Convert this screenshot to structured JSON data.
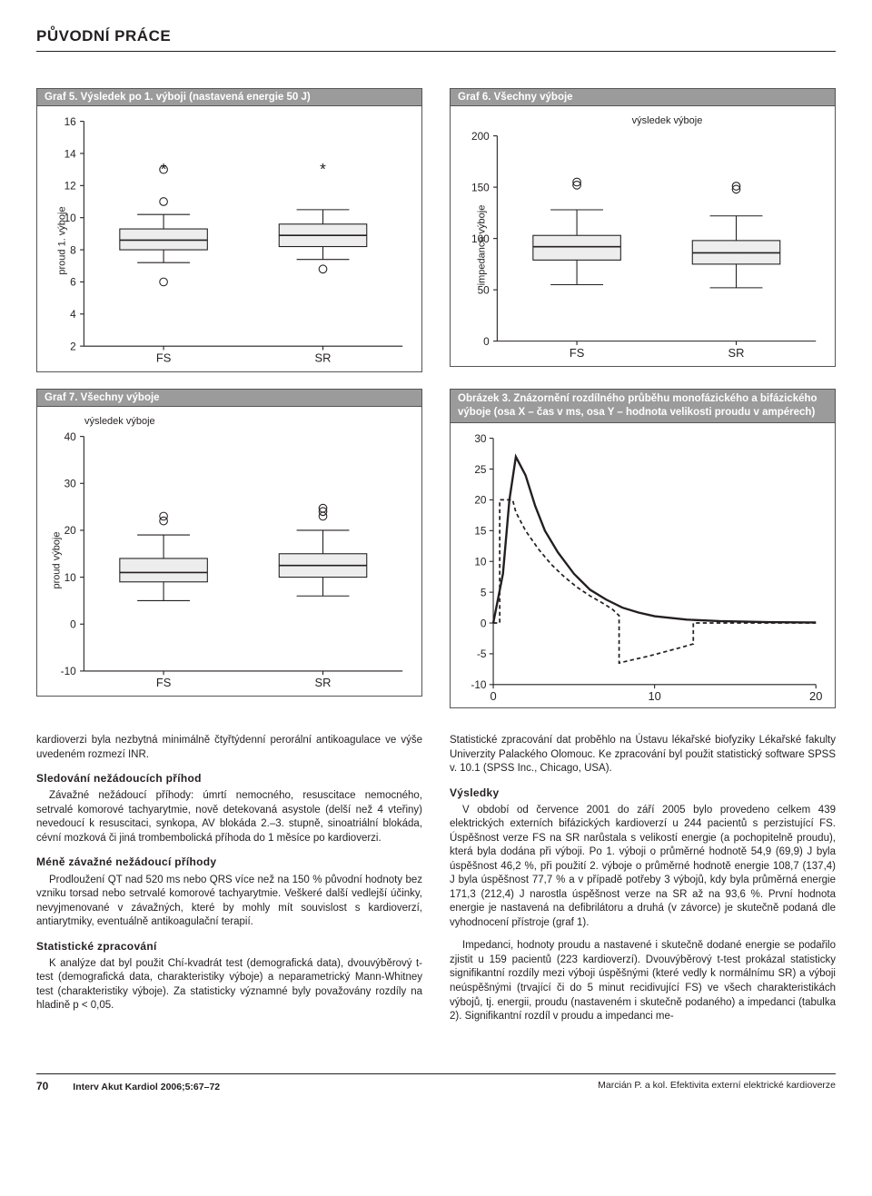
{
  "header": {
    "section": "PŮVODNÍ PRÁCE"
  },
  "chart5": {
    "type": "boxplot",
    "title": "Graf 5. Výsledek po 1. výboji (nastavená energie 50 J)",
    "ylabel": "proud 1. výboje",
    "ymin": 2,
    "ymax": 16,
    "yticks": [
      2,
      4,
      6,
      8,
      10,
      12,
      14,
      16
    ],
    "categories": [
      "FS",
      "SR"
    ],
    "boxes": [
      {
        "q1": 8.0,
        "median": 8.6,
        "q3": 9.3,
        "whisker_low": 7.2,
        "whisker_high": 10.2,
        "outliers": [
          11.0,
          6.0,
          13.0
        ],
        "stars": [
          13.0
        ]
      },
      {
        "q1": 8.2,
        "median": 8.9,
        "q3": 9.6,
        "whisker_low": 7.4,
        "whisker_high": 10.5,
        "outliers": [
          6.8
        ],
        "stars": [
          13.0
        ]
      }
    ],
    "box_fill": "#ededed",
    "box_stroke": "#231f20"
  },
  "chart6": {
    "type": "boxplot",
    "title": "Graf 6. Všechny výboje",
    "subtitle": "výsledek výboje",
    "ylabel": "impedance výboje",
    "ymin": 0,
    "ymax": 200,
    "yticks": [
      0,
      50,
      100,
      150,
      200
    ],
    "categories": [
      "FS",
      "SR"
    ],
    "boxes": [
      {
        "q1": 79,
        "median": 92,
        "q3": 103,
        "whisker_low": 55,
        "whisker_high": 128,
        "outliers": [
          152,
          155
        ],
        "stars": []
      },
      {
        "q1": 75,
        "median": 86,
        "q3": 98,
        "whisker_low": 52,
        "whisker_high": 122,
        "outliers": [
          148,
          151
        ],
        "stars": []
      }
    ],
    "box_fill": "#ededed",
    "box_stroke": "#231f20"
  },
  "chart7": {
    "type": "boxplot",
    "title": "Graf 7. Všechny výboje",
    "subtitle": "výsledek výboje",
    "ylabel": "proud výboje",
    "ymin": -10,
    "ymax": 40,
    "yticks": [
      -10,
      0,
      10,
      20,
      30,
      40
    ],
    "categories": [
      "FS",
      "SR"
    ],
    "boxes": [
      {
        "q1": 9,
        "median": 11,
        "q3": 14,
        "whisker_low": 5,
        "whisker_high": 19,
        "outliers": [
          22,
          23
        ],
        "stars": []
      },
      {
        "q1": 10,
        "median": 12.5,
        "q3": 15,
        "whisker_low": 6,
        "whisker_high": 20,
        "outliers": [
          23,
          24,
          24.7
        ],
        "stars": []
      }
    ],
    "box_fill": "#ededed",
    "box_stroke": "#231f20"
  },
  "fig3": {
    "type": "line",
    "title": "Obrázek 3. Znázornění rozdílného průběhu monofázického a bifázického výboje (osa X – čas v ms, osa Y – hodnota velikosti proudu v ampérech)",
    "xmin": 0,
    "xmax": 20,
    "xticks": [
      0,
      10,
      20
    ],
    "ymin": -10,
    "ymax": 30,
    "yticks": [
      -10,
      -5,
      0,
      5,
      10,
      15,
      20,
      25,
      30
    ],
    "series": [
      {
        "style": "solid",
        "color": "#231f20",
        "width": 2.2,
        "points": [
          [
            0,
            0
          ],
          [
            0.6,
            8
          ],
          [
            1.0,
            20
          ],
          [
            1.4,
            27
          ],
          [
            2.0,
            24
          ],
          [
            2.6,
            19
          ],
          [
            3.2,
            15
          ],
          [
            4.0,
            11.5
          ],
          [
            5.0,
            8
          ],
          [
            6.0,
            5.4
          ],
          [
            7.0,
            3.8
          ],
          [
            8.0,
            2.5
          ],
          [
            9.0,
            1.7
          ],
          [
            10.0,
            1.1
          ],
          [
            12.0,
            0.55
          ],
          [
            14.0,
            0.3
          ],
          [
            17.0,
            0.15
          ],
          [
            20.0,
            0.08
          ]
        ]
      },
      {
        "style": "dashed",
        "color": "#231f20",
        "width": 1.6,
        "points": [
          [
            0,
            0
          ],
          [
            0.4,
            0
          ],
          [
            0.4,
            20
          ],
          [
            1.2,
            20
          ],
          [
            1.4,
            18
          ],
          [
            2.0,
            15
          ],
          [
            2.8,
            12
          ],
          [
            3.6,
            9.5
          ],
          [
            4.4,
            7.5
          ],
          [
            5.2,
            5.8
          ],
          [
            6.0,
            4.4
          ],
          [
            6.8,
            3.2
          ],
          [
            7.4,
            2.2
          ],
          [
            7.8,
            1.2
          ],
          [
            7.8,
            -6.5
          ],
          [
            8.6,
            -6.0
          ],
          [
            9.6,
            -5.4
          ],
          [
            10.6,
            -4.7
          ],
          [
            11.6,
            -4.0
          ],
          [
            12.4,
            -3.4
          ],
          [
            12.4,
            0
          ],
          [
            20,
            0
          ]
        ]
      }
    ]
  },
  "body": {
    "left": {
      "para1": "kardioverzi byla nezbytná minimálně čtyřtýdenní perorální antikoagulace ve výše uvedeném rozmezí INR.",
      "h1": "Sledování nežádoucích příhod",
      "para2": "Závažné nežádoucí příhody: úmrtí nemocného, resuscitace nemocného, setrvalé komorové tachyarytmie, nově detekovaná asystole (delší než 4 vteřiny) nevedoucí k resuscitaci, synkopa, AV blokáda 2.–3. stupně, sinoatriální blokáda, cévní mozková či jiná trombembolická příhoda do 1 měsíce po kardioverzi.",
      "h2": "Méně závažné nežádoucí příhody",
      "para3": "Prodloužení QT nad 520 ms nebo QRS více než na 150 % původní hodnoty bez vzniku torsad nebo setrvalé komorové tachyarytmie. Veškeré další vedlejší účinky, nevyjmenované v závažných, které by mohly mít souvislost s kardioverzí, antiarytmiky, eventuálně antikoagulační terapií.",
      "h3": "Statistické zpracování",
      "para4": "K analýze dat byl použit Chí-kvadrát test (demografická data), dvouvýběrový t-test (demografická data, charakteristiky výboje) a neparametrický Mann-Whitney test (charakteristiky výboje). Za statisticky významné byly považovány rozdíly na hladině p < 0,05."
    },
    "right": {
      "para1": "Statistické zpracování dat proběhlo na Ústavu lékařské biofyziky Lékařské fakulty Univerzity Palackého Olomouc. Ke zpracování byl použit statistický software SPSS v. 10.1 (SPSS Inc., Chicago, USA).",
      "h1": "Výsledky",
      "para2": "V období od července 2001 do září 2005 bylo provedeno celkem 439 elektrických externích bifázických kardioverzí u 244 pacientů s perzistující FS. Úspěšnost verze FS na SR narůstala s velikostí energie (a pochopitelně proudu), která byla dodána při výboji. Po 1. výboji o průměrné hodnotě 54,9 (69,9) J byla úspěšnost 46,2 %, při použití 2. výboje o průměrné hodnotě energie 108,7 (137,4) J byla úspěšnost 77,7 % a v případě potřeby 3 výbojů, kdy byla průměrná energie 171,3 (212,4) J narostla úspěšnost verze na SR až na 93,6 %. První hodnota energie je nastavená na defibrilátoru a druhá (v závorce) je skutečně podaná dle vyhodnocení přístroje (graf 1).",
      "para3": "Impedanci, hodnoty proudu a nastavené i skutečně dodané energie se podařilo zjistit u 159 pacientů (223 kardioverzí). Dvouvýběrový t-test prokázal statisticky signifikantní rozdíly mezi výboji úspěšnými (které vedly k normálnímu SR) a výboji neúspěšnými (trvající či do 5 minut recidivující FS) ve všech charakteristikách výbojů, tj. energii, proudu (nastaveném i skutečně podaného) a impedanci (tabulka 2). Signifikantní rozdíl v proudu a impedanci me-"
    }
  },
  "footer": {
    "page": "70",
    "citation": "Interv Akut Kardiol 2006;5:67–72",
    "right": "Marcián P. a kol. Efektivita externí elektrické kardioverze"
  }
}
